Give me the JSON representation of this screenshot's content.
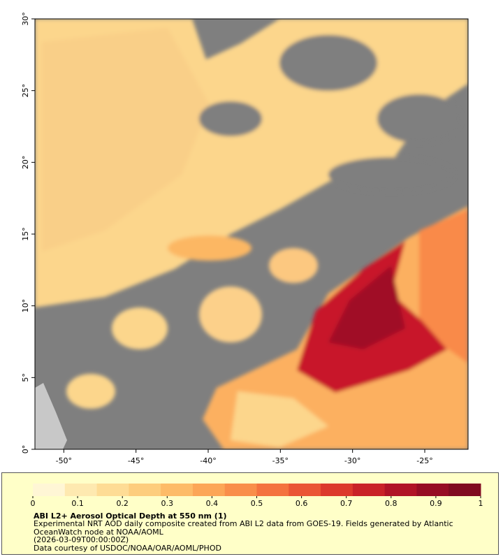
{
  "map": {
    "lon_axis": {
      "lim": [
        -52,
        -22
      ],
      "ticks": [
        {
          "value": -50,
          "label": "-50°"
        },
        {
          "value": -45,
          "label": "-45°"
        },
        {
          "value": -40,
          "label": "-40°"
        },
        {
          "value": -35,
          "label": "-35°"
        },
        {
          "value": -30,
          "label": "-30°"
        },
        {
          "value": -25,
          "label": "-25°"
        }
      ]
    },
    "lat_axis": {
      "lim": [
        0,
        30
      ],
      "ticks": [
        {
          "value": 0,
          "label": "0°"
        },
        {
          "value": 5,
          "label": "5°"
        },
        {
          "value": 10,
          "label": "10°"
        },
        {
          "value": 15,
          "label": "15°"
        },
        {
          "value": 20,
          "label": "20°"
        },
        {
          "value": 25,
          "label": "25°"
        },
        {
          "value": 30,
          "label": "30°"
        }
      ]
    }
  },
  "colorbar": {
    "lim": [
      0,
      1
    ],
    "ticks": [
      0,
      0.1,
      0.2,
      0.3,
      0.4,
      0.5,
      0.6,
      0.7,
      0.8,
      0.9,
      1
    ],
    "colors": [
      "#fff6d5",
      "#fee9b0",
      "#fedc95",
      "#fdcd7d",
      "#fdbb68",
      "#fca657",
      "#f98e4a",
      "#f4723f",
      "#ea5535",
      "#dc392c",
      "#c92228",
      "#b01326",
      "#960c24",
      "#800a20"
    ]
  },
  "legend": {
    "title": "ABI L2+ Aerosol Optical Depth at 550 nm (1)",
    "description": "Experimental NRT AOD daily composite created from ABI L2 data from GOES-19. Fields generated by Atlantic OceanWatch node at NOAA/AOML",
    "time": "(2026-03-09T00:00:00Z)",
    "credit": "Data courtesy of USDOC/NOAA/OAR/AOML/PHOD"
  }
}
